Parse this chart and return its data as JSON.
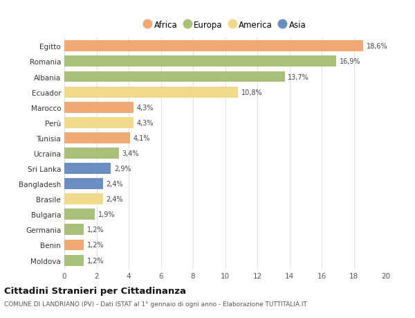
{
  "countries": [
    "Egitto",
    "Romania",
    "Albania",
    "Ecuador",
    "Marocco",
    "Perù",
    "Tunisia",
    "Ucraina",
    "Sri Lanka",
    "Bangladesh",
    "Brasile",
    "Bulgaria",
    "Germania",
    "Benin",
    "Moldova"
  ],
  "values": [
    18.6,
    16.9,
    13.7,
    10.8,
    4.3,
    4.3,
    4.1,
    3.4,
    2.9,
    2.4,
    2.4,
    1.9,
    1.2,
    1.2,
    1.2
  ],
  "continents": [
    "Africa",
    "Europa",
    "Europa",
    "America",
    "Africa",
    "America",
    "Africa",
    "Europa",
    "Asia",
    "Asia",
    "America",
    "Europa",
    "Europa",
    "Africa",
    "Europa"
  ],
  "colors": {
    "Africa": "#F0A875",
    "Europa": "#A8C07A",
    "America": "#F0D98A",
    "Asia": "#6A8EC0"
  },
  "title": "Cittadini Stranieri per Cittadinanza",
  "subtitle": "COMUNE DI LANDRIANO (PV) - Dati ISTAT al 1° gennaio di ogni anno - Elaborazione TUTTITALIA.IT",
  "xlim": [
    0,
    20
  ],
  "xticks": [
    0,
    2,
    4,
    6,
    8,
    10,
    12,
    14,
    16,
    18,
    20
  ],
  "background_color": "#ffffff",
  "grid_color": "#e0e0e0",
  "bar_height": 0.72
}
